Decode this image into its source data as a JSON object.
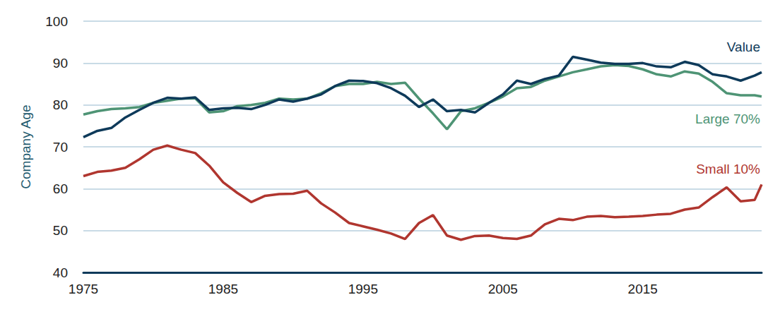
{
  "chart_data": {
    "type": "line",
    "y_label": "Company Age",
    "x": [
      1975,
      1976,
      1977,
      1978,
      1979,
      1980,
      1981,
      1982,
      1983,
      1984,
      1985,
      1986,
      1987,
      1988,
      1989,
      1990,
      1991,
      1992,
      1993,
      1994,
      1995,
      1996,
      1997,
      1998,
      1999,
      2000,
      2001,
      2002,
      2003,
      2004,
      2005,
      2006,
      2007,
      2008,
      2009,
      2010,
      2011,
      2012,
      2013,
      2014,
      2015,
      2016,
      2017,
      2018,
      2019,
      2020,
      2021,
      2022,
      2023,
      2023.5
    ],
    "series": [
      {
        "name": "Value",
        "color": "#0e3a5a",
        "values": [
          72.3,
          73.8,
          74.5,
          77,
          78.8,
          80.5,
          81.7,
          81.5,
          81.8,
          78.8,
          79.2,
          79.3,
          79,
          80,
          81.3,
          80.8,
          81.5,
          82.5,
          84.5,
          85.8,
          85.7,
          85.2,
          84,
          82.2,
          79.5,
          81.3,
          78.5,
          78.8,
          78.2,
          80.5,
          82.5,
          85.8,
          85,
          86.2,
          87,
          91.5,
          90.8,
          90.1,
          89.8,
          89.8,
          90,
          89.2,
          89,
          90.3,
          89.5,
          87.3,
          86.8,
          85.8,
          87,
          87.8
        ]
      },
      {
        "name": "Large 70%",
        "color": "#4e9475",
        "values": [
          77.7,
          78.5,
          79,
          79.2,
          79.5,
          80.5,
          81,
          81.5,
          81.6,
          78.2,
          78.5,
          79.7,
          80,
          80.5,
          81.5,
          81.3,
          81.5,
          82.8,
          84.5,
          85,
          85,
          85.5,
          85,
          85.3,
          81.5,
          78,
          74.2,
          78.5,
          79.2,
          80.5,
          82,
          84,
          84.3,
          85.8,
          86.8,
          87.8,
          88.5,
          89.2,
          89.5,
          89.3,
          88.5,
          87.3,
          86.8,
          88,
          87.5,
          85.5,
          82.8,
          82.3,
          82.3,
          82
        ]
      },
      {
        "name": "Small 10%",
        "color": "#b0362f",
        "values": [
          63,
          64,
          64.3,
          65,
          67,
          69.3,
          70.3,
          69.3,
          68.5,
          65.5,
          61.5,
          59,
          56.8,
          58.3,
          58.7,
          58.8,
          59.5,
          56.5,
          54.3,
          51.8,
          51,
          50.2,
          49.3,
          48,
          51.8,
          53.7,
          48.8,
          47.8,
          48.7,
          48.8,
          48.2,
          48,
          48.8,
          51.5,
          52.8,
          52.5,
          53.3,
          53.5,
          53.2,
          53.3,
          53.5,
          53.8,
          54,
          55,
          55.5,
          58,
          60.3,
          57,
          57.3,
          61
        ]
      }
    ],
    "xlim": [
      1975,
      2023.5
    ],
    "ylim": [
      40,
      100
    ],
    "xticks": [
      1975,
      1985,
      1995,
      2005,
      2015
    ],
    "yticks": [
      40,
      50,
      60,
      70,
      80,
      90,
      100
    ],
    "grid": true
  }
}
